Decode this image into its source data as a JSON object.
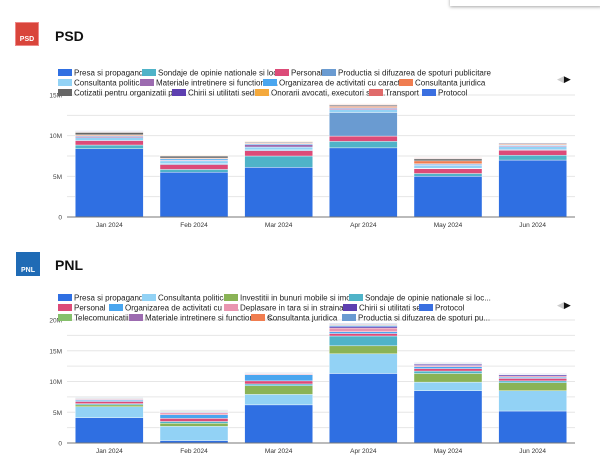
{
  "charts": [
    {
      "party": "PSD",
      "logo_text": "PSD",
      "brand_color": "#d9453b",
      "chart_data": {
        "type": "bar",
        "stacked": true,
        "categories": [
          "Jan 2024",
          "Feb 2024",
          "Mar 2024",
          "Apr 2024",
          "May 2024",
          "Jun 2024"
        ],
        "ylim": [
          0,
          15000000
        ],
        "yticks": [
          {
            "v": 0,
            "label": "0"
          },
          {
            "v": 5000000,
            "label": "5M"
          },
          {
            "v": 10000000,
            "label": "10M"
          },
          {
            "v": 15000000,
            "label": "15M"
          }
        ],
        "grid": true,
        "legend_position": "top",
        "legend_rows": [
          [
            0,
            1,
            2,
            3
          ],
          [
            4,
            5,
            6,
            7
          ],
          [
            8,
            9,
            10,
            11,
            12
          ]
        ],
        "series": [
          {
            "name": "Presa si propaganda",
            "color": "#2f6fe2",
            "values": [
              8400000,
              5500000,
              6100000,
              8500000,
              5000000,
              7000000
            ]
          },
          {
            "name": "Sondaje de opinie nationale si locale",
            "color": "#4fb3c8",
            "values": [
              450000,
              350000,
              1400000,
              800000,
              350000,
              600000
            ]
          },
          {
            "name": "Personal",
            "color": "#dc4b78",
            "values": [
              550000,
              600000,
              650000,
              650000,
              600000,
              600000
            ]
          },
          {
            "name": "Productia si difuzarea de spoturi publicitare",
            "color": "#6a9bd1",
            "values": [
              0,
              100000,
              100000,
              2900000,
              50000,
              100000
            ]
          },
          {
            "name": "Consultanta politica",
            "color": "#92d2f5",
            "values": [
              350000,
              350000,
              350000,
              350000,
              350000,
              350000
            ]
          },
          {
            "name": "Materiale intretinere si functionar...",
            "color": "#9c6bb0",
            "values": [
              150000,
              100000,
              300000,
              150000,
              100000,
              100000
            ]
          },
          {
            "name": "Organizarea de activitati cu caract...",
            "color": "#4aa6ef",
            "values": [
              100000,
              150000,
              100000,
              100000,
              100000,
              100000
            ]
          },
          {
            "name": "Consultanta juridica",
            "color": "#f07d50",
            "values": [
              100000,
              100000,
              100000,
              150000,
              350000,
              100000
            ]
          },
          {
            "name": "Cotizatii pentru organizatii pol...",
            "color": "#666666",
            "values": [
              300000,
              250000,
              100000,
              150000,
              250000,
              100000
            ]
          },
          {
            "name": "Chirii si utilitati sedii",
            "color": "#5d3fb0",
            "values": [
              50000,
              50000,
              50000,
              50000,
              50000,
              50000
            ]
          },
          {
            "name": "Onorarii avocati, executori si e...",
            "color": "#f4a93c",
            "values": [
              50000,
              50000,
              50000,
              50000,
              50000,
              0
            ]
          },
          {
            "name": "Transport",
            "color": "#e06a6a",
            "values": [
              50000,
              0,
              0,
              50000,
              50000,
              0
            ]
          },
          {
            "name": "Protocol",
            "color": "#3a6fe0",
            "values": [
              50000,
              0,
              0,
              0,
              0,
              0
            ]
          }
        ]
      }
    },
    {
      "party": "PNL",
      "logo_text": "PNL",
      "brand_color": "#1f6bb5",
      "chart_data": {
        "type": "bar",
        "stacked": true,
        "categories": [
          "Jan 2024",
          "Feb 2024",
          "Mar 2024",
          "Apr 2024",
          "May 2024",
          "Jun 2024"
        ],
        "ylim": [
          0,
          20000000
        ],
        "yticks": [
          {
            "v": 0,
            "label": "0"
          },
          {
            "v": 5000000,
            "label": "5M"
          },
          {
            "v": 10000000,
            "label": "10M"
          },
          {
            "v": 15000000,
            "label": "15M"
          },
          {
            "v": 20000000,
            "label": "20M"
          }
        ],
        "grid": true,
        "legend_position": "top",
        "legend_rows": [
          [
            0,
            1,
            2,
            3
          ],
          [
            4,
            5,
            6,
            7,
            8
          ],
          [
            9,
            10,
            11,
            12
          ]
        ],
        "series": [
          {
            "name": "Presa si propaganda",
            "color": "#2f6fe2",
            "values": [
              4100000,
              400000,
              6200000,
              11300000,
              8500000,
              5200000
            ]
          },
          {
            "name": "Consultanta politica",
            "color": "#92d2f5",
            "values": [
              1800000,
              2300000,
              1700000,
              3200000,
              1400000,
              3300000
            ]
          },
          {
            "name": "Investitii in bunuri mobile si imobile",
            "color": "#8ab356",
            "values": [
              300000,
              500000,
              1400000,
              1300000,
              1400000,
              1300000
            ]
          },
          {
            "name": "Sondaje de opinie nationale si loc...",
            "color": "#4fb3c8",
            "values": [
              200000,
              300000,
              300000,
              1600000,
              400000,
              300000
            ]
          },
          {
            "name": "Personal",
            "color": "#dc4b78",
            "values": [
              350000,
              500000,
              500000,
              400000,
              400000,
              400000
            ]
          },
          {
            "name": "Organizarea de activitati cu ca...",
            "color": "#4aa6ef",
            "values": [
              200000,
              600000,
              1000000,
              300000,
              300000,
              200000
            ]
          },
          {
            "name": "Deplasare in tara si in strainat...",
            "color": "#e995b0",
            "values": [
              150000,
              300000,
              150000,
              600000,
              200000,
              200000
            ]
          },
          {
            "name": "Chirii si utilitati sedii",
            "color": "#5d3fb0",
            "values": [
              50000,
              100000,
              50000,
              200000,
              200000,
              200000
            ]
          },
          {
            "name": "Protocol",
            "color": "#3a6fe0",
            "values": [
              50000,
              100000,
              50000,
              200000,
              100000,
              100000
            ]
          },
          {
            "name": "Telecomunicatii",
            "color": "#86c06c",
            "values": [
              50000,
              100000,
              50000,
              100000,
              50000,
              50000
            ]
          },
          {
            "name": "Materiale intretinere si functionare s...",
            "color": "#9c6bb0",
            "values": [
              100000,
              100000,
              50000,
              100000,
              100000,
              50000
            ]
          },
          {
            "name": "Consultanta juridica",
            "color": "#f07d50",
            "values": [
              0,
              50000,
              0,
              100000,
              0,
              0
            ]
          },
          {
            "name": "Productia si difuzarea de spoturi pu...",
            "color": "#6a9bd1",
            "values": [
              50000,
              50000,
              50000,
              100000,
              50000,
              0
            ]
          }
        ]
      }
    }
  ],
  "legend_nav": {
    "prev_icon": "triangle-left-icon",
    "next_icon": "triangle-right-icon",
    "prev": "◀",
    "next": "▶"
  }
}
